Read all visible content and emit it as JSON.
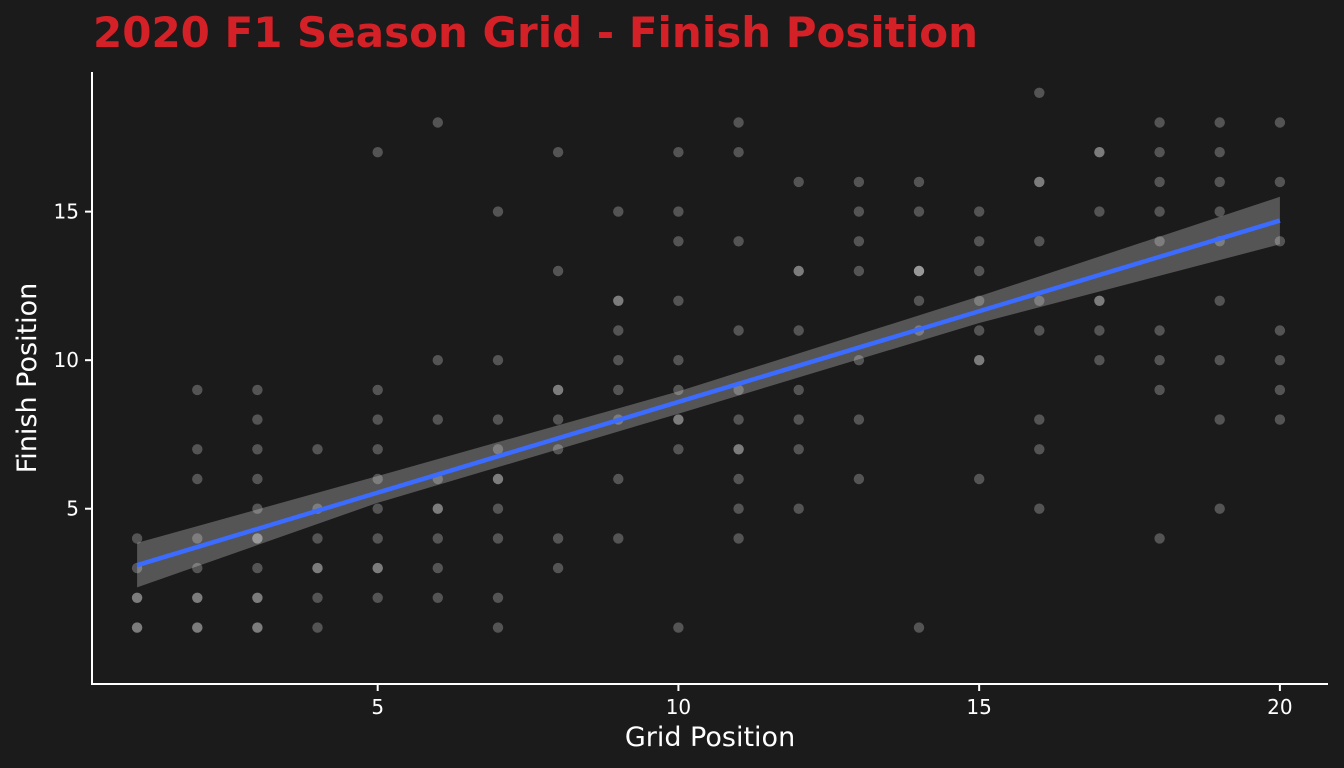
{
  "chart_data": {
    "type": "scatter",
    "title": "2020 F1 Season Grid - Finish Position",
    "xlabel": "Grid Position",
    "ylabel": "Finish Position",
    "xlim": [
      0.25,
      20.8
    ],
    "ylim": [
      -0.9,
      19.7
    ],
    "x_ticks": [
      5,
      10,
      15,
      20
    ],
    "y_ticks": [
      5,
      10,
      15
    ],
    "grid": false,
    "colors": {
      "background": "#1b1b1b",
      "title": "#d42027",
      "text": "#ffffff",
      "axis_line": "#ffffff",
      "point": "#d9d9d9",
      "trend_line": "#3b6bff",
      "confidence_band": "#6a6a6a"
    },
    "points": [
      [
        1,
        1
      ],
      [
        1,
        1
      ],
      [
        1,
        2
      ],
      [
        1,
        2
      ],
      [
        1,
        3
      ],
      [
        1,
        4
      ],
      [
        2,
        1
      ],
      [
        2,
        1
      ],
      [
        2,
        2
      ],
      [
        2,
        2
      ],
      [
        2,
        3
      ],
      [
        2,
        4
      ],
      [
        2,
        6
      ],
      [
        2,
        7
      ],
      [
        2,
        9
      ],
      [
        3,
        1
      ],
      [
        3,
        1
      ],
      [
        3,
        2
      ],
      [
        3,
        2
      ],
      [
        3,
        3
      ],
      [
        3,
        4
      ],
      [
        3,
        4
      ],
      [
        3,
        5
      ],
      [
        3,
        6
      ],
      [
        3,
        7
      ],
      [
        3,
        8
      ],
      [
        3,
        9
      ],
      [
        4,
        1
      ],
      [
        4,
        2
      ],
      [
        4,
        3
      ],
      [
        4,
        3
      ],
      [
        4,
        4
      ],
      [
        4,
        5
      ],
      [
        4,
        7
      ],
      [
        5,
        2
      ],
      [
        5,
        3
      ],
      [
        5,
        3
      ],
      [
        5,
        4
      ],
      [
        5,
        5
      ],
      [
        5,
        6
      ],
      [
        5,
        7
      ],
      [
        5,
        8
      ],
      [
        5,
        9
      ],
      [
        5,
        17
      ],
      [
        6,
        2
      ],
      [
        6,
        3
      ],
      [
        6,
        4
      ],
      [
        6,
        5
      ],
      [
        6,
        5
      ],
      [
        6,
        6
      ],
      [
        6,
        8
      ],
      [
        6,
        10
      ],
      [
        6,
        18
      ],
      [
        7,
        1
      ],
      [
        7,
        2
      ],
      [
        7,
        4
      ],
      [
        7,
        5
      ],
      [
        7,
        6
      ],
      [
        7,
        6
      ],
      [
        7,
        7
      ],
      [
        7,
        8
      ],
      [
        7,
        10
      ],
      [
        7,
        15
      ],
      [
        8,
        3
      ],
      [
        8,
        4
      ],
      [
        8,
        7
      ],
      [
        8,
        8
      ],
      [
        8,
        9
      ],
      [
        8,
        9
      ],
      [
        8,
        13
      ],
      [
        8,
        17
      ],
      [
        9,
        4
      ],
      [
        9,
        6
      ],
      [
        9,
        8
      ],
      [
        9,
        9
      ],
      [
        9,
        10
      ],
      [
        9,
        11
      ],
      [
        9,
        12
      ],
      [
        9,
        12
      ],
      [
        9,
        15
      ],
      [
        10,
        1
      ],
      [
        10,
        7
      ],
      [
        10,
        8
      ],
      [
        10,
        8
      ],
      [
        10,
        9
      ],
      [
        10,
        10
      ],
      [
        10,
        12
      ],
      [
        10,
        14
      ],
      [
        10,
        15
      ],
      [
        10,
        17
      ],
      [
        11,
        4
      ],
      [
        11,
        5
      ],
      [
        11,
        6
      ],
      [
        11,
        7
      ],
      [
        11,
        7
      ],
      [
        11,
        8
      ],
      [
        11,
        9
      ],
      [
        11,
        11
      ],
      [
        11,
        14
      ],
      [
        11,
        17
      ],
      [
        11,
        18
      ],
      [
        12,
        5
      ],
      [
        12,
        7
      ],
      [
        12,
        8
      ],
      [
        12,
        9
      ],
      [
        12,
        11
      ],
      [
        12,
        13
      ],
      [
        12,
        13
      ],
      [
        12,
        16
      ],
      [
        13,
        6
      ],
      [
        13,
        8
      ],
      [
        13,
        10
      ],
      [
        13,
        13
      ],
      [
        13,
        14
      ],
      [
        13,
        15
      ],
      [
        13,
        16
      ],
      [
        14,
        1
      ],
      [
        14,
        11
      ],
      [
        14,
        12
      ],
      [
        14,
        13
      ],
      [
        14,
        13
      ],
      [
        14,
        13
      ],
      [
        14,
        15
      ],
      [
        14,
        16
      ],
      [
        15,
        6
      ],
      [
        15,
        10
      ],
      [
        15,
        10
      ],
      [
        15,
        11
      ],
      [
        15,
        12
      ],
      [
        15,
        13
      ],
      [
        15,
        14
      ],
      [
        15,
        15
      ],
      [
        16,
        5
      ],
      [
        16,
        7
      ],
      [
        16,
        8
      ],
      [
        16,
        11
      ],
      [
        16,
        12
      ],
      [
        16,
        14
      ],
      [
        16,
        16
      ],
      [
        16,
        16
      ],
      [
        16,
        19
      ],
      [
        17,
        10
      ],
      [
        17,
        11
      ],
      [
        17,
        12
      ],
      [
        17,
        12
      ],
      [
        17,
        15
      ],
      [
        17,
        17
      ],
      [
        17,
        17
      ],
      [
        18,
        4
      ],
      [
        18,
        9
      ],
      [
        18,
        10
      ],
      [
        18,
        11
      ],
      [
        18,
        14
      ],
      [
        18,
        15
      ],
      [
        18,
        16
      ],
      [
        18,
        17
      ],
      [
        18,
        18
      ],
      [
        19,
        5
      ],
      [
        19,
        8
      ],
      [
        19,
        10
      ],
      [
        19,
        12
      ],
      [
        19,
        14
      ],
      [
        19,
        15
      ],
      [
        19,
        16
      ],
      [
        19,
        17
      ],
      [
        19,
        18
      ],
      [
        20,
        8
      ],
      [
        20,
        9
      ],
      [
        20,
        10
      ],
      [
        20,
        11
      ],
      [
        20,
        14
      ],
      [
        20,
        16
      ],
      [
        20,
        18
      ]
    ],
    "trend_line": {
      "x": [
        1,
        20
      ],
      "y": [
        3.1,
        14.7
      ]
    },
    "confidence_band": {
      "x": [
        1,
        5,
        10,
        15,
        20
      ],
      "upper": [
        3.85,
        6.1,
        8.95,
        12.15,
        15.5
      ],
      "lower": [
        2.35,
        5.2,
        8.2,
        11.25,
        13.9
      ]
    }
  }
}
